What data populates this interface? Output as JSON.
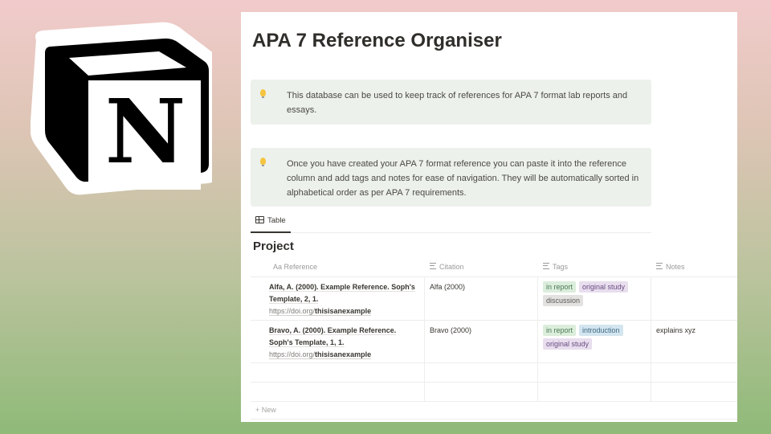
{
  "logo": {
    "name": "Notion logo",
    "letter": "N"
  },
  "page": {
    "title": "APA 7 Reference Organiser",
    "callouts": [
      {
        "icon": "lightbulb-icon",
        "text": "This database can be used to keep track of references for APA 7 format lab reports and essays."
      },
      {
        "icon": "lightbulb-icon",
        "text": "Once you have created your APA 7 format reference you can paste it into the reference column and add tags and notes for ease of navigation. They will be automatically sorted in alphabetical order as per APA 7 requirements."
      }
    ],
    "view_tab": {
      "icon": "table-icon",
      "label": "Table"
    },
    "database_title": "Project"
  },
  "table": {
    "columns": [
      {
        "icon": "Aa",
        "label": "Reference"
      },
      {
        "icon": "text-icon",
        "label": "Citation"
      },
      {
        "icon": "list-icon",
        "label": "Tags"
      },
      {
        "icon": "text-icon",
        "label": "Notes"
      }
    ],
    "rows": [
      {
        "reference": "Alfa, A. (2000). Example Reference. Soph's Template, 2, 1.",
        "doi_prefix": "https://doi.org/",
        "doi_suffix": "thisisanexample",
        "citation": "Alfa (2000)",
        "tags": [
          {
            "label": "in report",
            "color": "#dbeddb"
          },
          {
            "label": "original study",
            "color": "#e8deee"
          },
          {
            "label": "discussion",
            "color": "#e3e2e0"
          }
        ],
        "notes": ""
      },
      {
        "reference": "Bravo, A. (2000). Example Reference. Soph's Template, 1, 1.",
        "doi_prefix": "https://doi.org/",
        "doi_suffix": "thisisanexample",
        "citation": "Bravo (2000)",
        "tags": [
          {
            "label": "in report",
            "color": "#dbeddb"
          },
          {
            "label": "introduction",
            "color": "#d3e5ef"
          },
          {
            "label": "original study",
            "color": "#e8deee"
          }
        ],
        "notes": "explains xyz"
      }
    ],
    "new_label": "+ New"
  }
}
